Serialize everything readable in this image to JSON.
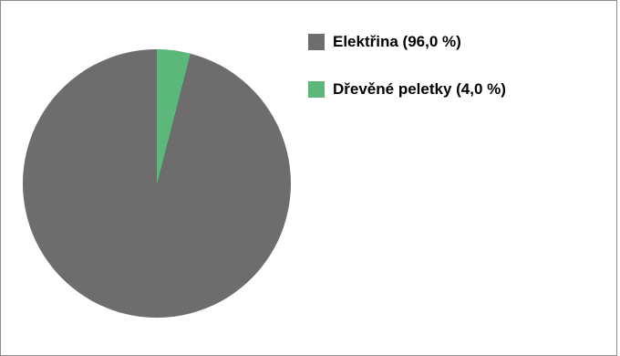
{
  "chart_data": {
    "type": "pie",
    "series": [
      {
        "name": "Elektřina",
        "value": 96.0,
        "legend_label": "Elektřina (96,0 %)",
        "color": "#6d6d6d"
      },
      {
        "name": "Dřevěné peletky",
        "value": 4.0,
        "legend_label": "Dřevěné peletky (4,0 %)",
        "color": "#5cb87a"
      }
    ],
    "unit": "%",
    "start_angle": "12 o'clock",
    "direction": "counter-clockwise",
    "legend_position": "top-right"
  }
}
